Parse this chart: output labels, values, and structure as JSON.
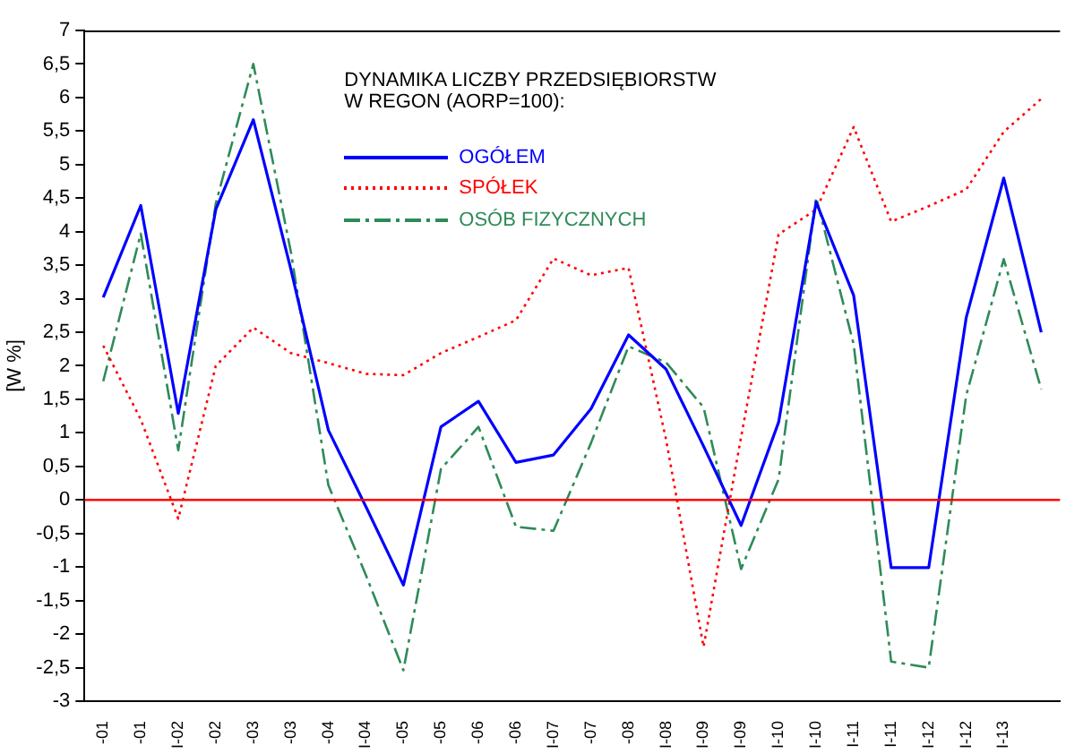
{
  "chart_data": {
    "type": "line",
    "legend_title": "DYNAMIKA LICZBY PRZEDSIĘBIORSTW\nW REGON (AORP=100):",
    "ylabel": "[W %]",
    "categories": [
      "-01",
      "-01",
      "I-02",
      "-02",
      "-03",
      "-03",
      "-04",
      "I-04",
      "-05",
      "-05",
      "-06",
      "-06",
      "I-07",
      "-07",
      "-08",
      "I-08",
      "I-09",
      "I-09",
      "I-10",
      "I-10",
      "I-11",
      "I-11",
      "I-12",
      "I-12",
      "I-13",
      null
    ],
    "series": [
      {
        "name": "OGÓŁEM",
        "color": "#0000ff",
        "line_style": "solid",
        "values": [
          3.02,
          4.39,
          1.29,
          4.33,
          5.67,
          3.44,
          1.04,
          -0.1,
          -1.27,
          1.09,
          1.47,
          0.56,
          0.67,
          1.36,
          2.46,
          1.95,
          0.8,
          -0.38,
          1.16,
          4.44,
          3.05,
          -1.01,
          -1.01,
          2.72,
          4.8,
          2.5
        ]
      },
      {
        "name": "SPÓŁEK",
        "color": "#ff0000",
        "line_style": "dotted",
        "values": [
          2.3,
          1.2,
          -0.28,
          2.0,
          2.57,
          2.19,
          2.04,
          1.88,
          1.86,
          2.19,
          2.43,
          2.68,
          3.6,
          3.35,
          3.46,
          0.9,
          -2.19,
          0.94,
          3.96,
          4.33,
          5.56,
          4.15,
          4.38,
          4.63,
          5.49,
          5.98
        ]
      },
      {
        "name": "OSÓB FIZYCZNYCH",
        "color": "#2e8b57",
        "line_style": "dashdot",
        "values": [
          1.77,
          3.97,
          0.74,
          4.42,
          6.5,
          3.7,
          0.22,
          -1.12,
          -2.54,
          0.46,
          1.09,
          -0.4,
          -0.46,
          0.85,
          2.29,
          2.05,
          1.38,
          -1.03,
          0.31,
          4.51,
          2.32,
          -2.41,
          -2.5,
          1.56,
          3.59,
          1.65
        ]
      }
    ],
    "ylim": [
      -3,
      7
    ],
    "yticks": [
      -3,
      {
        "value": -2.5,
        "label": "-2,5"
      },
      -2,
      {
        "value": -1.5,
        "label": "-1,5"
      },
      -1,
      {
        "value": -0.5,
        "label": "-0,5"
      },
      0,
      {
        "value": 0.5,
        "label": "0,5"
      },
      1,
      {
        "value": 1.5,
        "label": "1,5"
      },
      2,
      {
        "value": 2.5,
        "label": "2,5"
      },
      3,
      {
        "value": 3.5,
        "label": "3,5"
      },
      4,
      {
        "value": 4.5,
        "label": "4,5"
      },
      5,
      {
        "value": 5.5,
        "label": "5,5"
      },
      6,
      {
        "value": 6.5,
        "label": "6,5"
      },
      7
    ],
    "ref_lines": [
      {
        "axis": "y",
        "value": 0,
        "color": "#ff0000"
      }
    ],
    "grid": false,
    "legend": "top",
    "marker": "none"
  }
}
